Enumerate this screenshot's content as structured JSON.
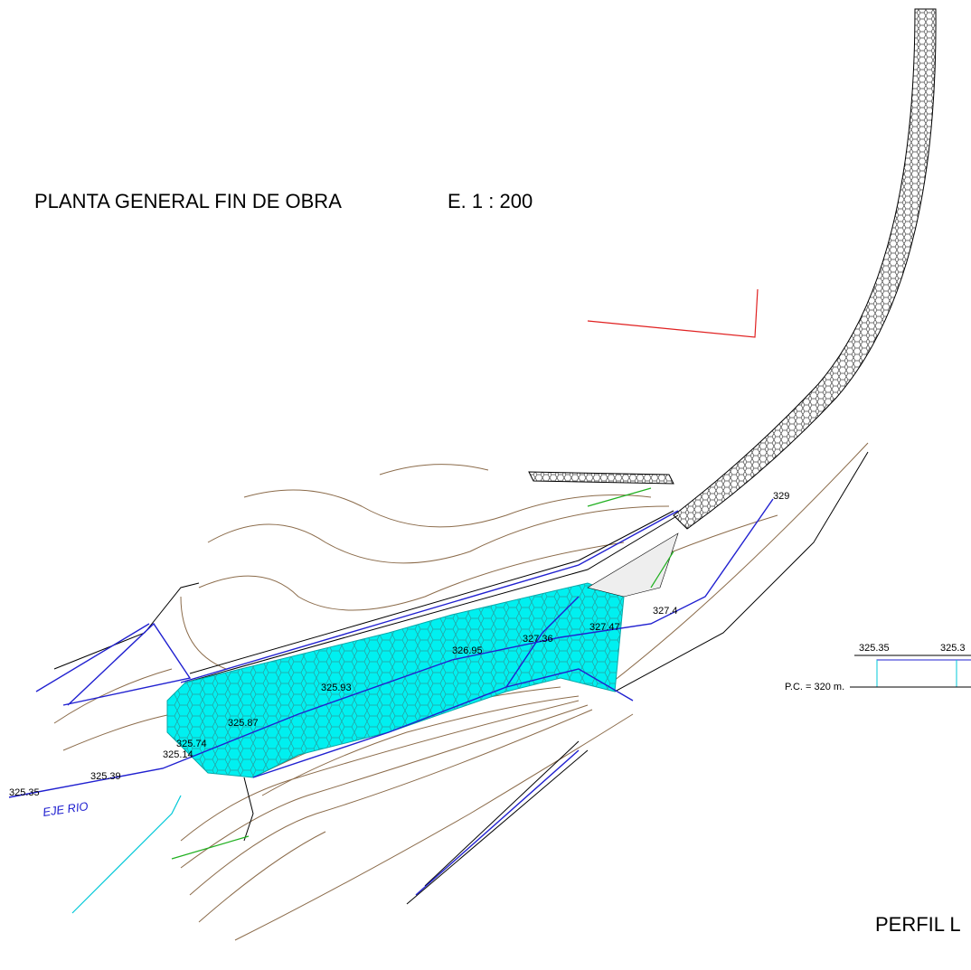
{
  "title": "PLANTA GENERAL FIN DE OBRA",
  "scale": "E. 1 : 200",
  "elevations": [
    "325.35",
    "325.39",
    "325.14",
    "325.74",
    "325.87",
    "325.93",
    "326.95",
    "327.36",
    "327.47",
    "327.4",
    "329"
  ],
  "river_axis_label": "EJE RIO",
  "profile": {
    "labels": [
      "325.35",
      "325.3"
    ],
    "reference": "P.C. = 320 m.",
    "title": "PERFIL L"
  }
}
